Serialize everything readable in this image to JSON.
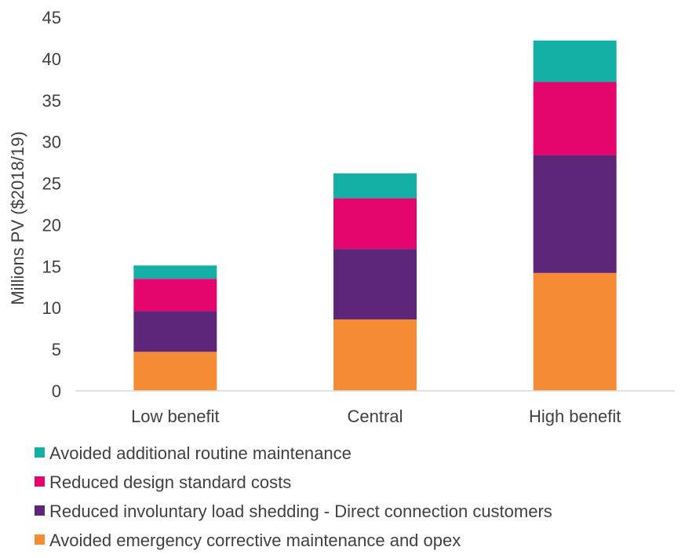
{
  "chart_data": {
    "type": "bar",
    "stacked": true,
    "title": "",
    "xlabel": "",
    "ylabel": "Millions PV ($2018/19)",
    "ylim": [
      0,
      45
    ],
    "yticks": [
      0,
      5,
      10,
      15,
      20,
      25,
      30,
      35,
      40,
      45
    ],
    "categories": [
      "Low benefit",
      "Central",
      "High benefit"
    ],
    "grid": false,
    "legend_placement": "bottom",
    "series": [
      {
        "name": "Avoided emergency corrective maintenance and opex",
        "color": "#F58C35",
        "values": [
          4.7,
          8.6,
          14.2
        ]
      },
      {
        "name": "Reduced involuntary load shedding - Direct connection customers",
        "color": "#5E2678",
        "values": [
          4.9,
          8.5,
          14.2
        ]
      },
      {
        "name": "Reduced design standard costs",
        "color": "#E5066D",
        "values": [
          3.9,
          6.1,
          8.8
        ]
      },
      {
        "name": "Avoided additional routine maintenance",
        "color": "#14AFA5",
        "values": [
          1.6,
          3.0,
          5.0
        ]
      }
    ],
    "legend_order": [
      "Avoided additional routine maintenance",
      "Reduced design standard costs",
      "Reduced involuntary load shedding - Direct connection customers",
      "Avoided emergency corrective maintenance and opex"
    ]
  }
}
